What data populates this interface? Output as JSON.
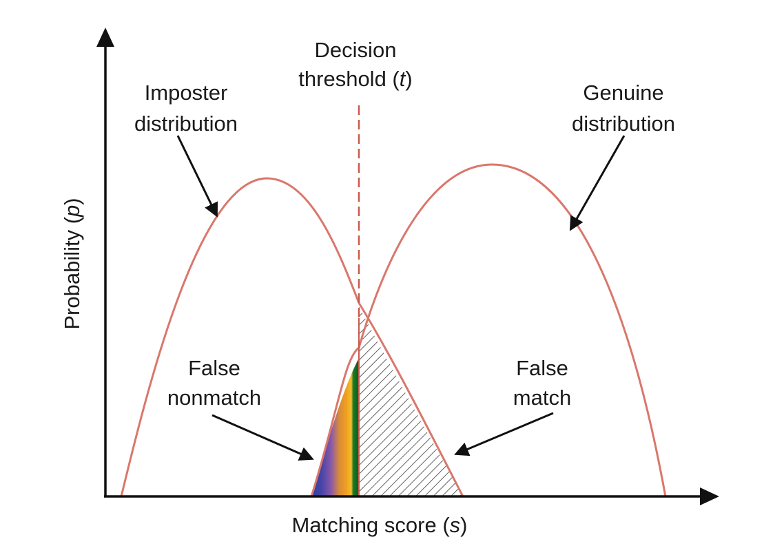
{
  "labels": {
    "threshold_line1": "Decision",
    "threshold_line2_pre": "threshold (",
    "threshold_var": "t",
    "threshold_line2_post": ")",
    "imposter_line1": "Imposter",
    "imposter_line2": "distribution",
    "genuine_line1": "Genuine",
    "genuine_line2": "distribution",
    "false_nonmatch_line1": "False",
    "false_nonmatch_line2": "nonmatch",
    "false_match_line1": "False",
    "false_match_line2": "match",
    "y_axis_pre": "Probability (",
    "y_axis_var": "p",
    "y_axis_post": ")",
    "x_axis_pre": "Matching score (",
    "x_axis_var": "s",
    "x_axis_post": ")"
  },
  "colors": {
    "curve": "#d9776c",
    "threshold": "#c85a50",
    "axis": "#111111",
    "hatch": "#3a3a3a",
    "gradient_stops": [
      "#2a3fa0",
      "#4a44a8",
      "#8a5aa8",
      "#d88a3a",
      "#f0a020",
      "#f2c02a",
      "#1a7a2a",
      "#0e5a1a"
    ]
  }
}
